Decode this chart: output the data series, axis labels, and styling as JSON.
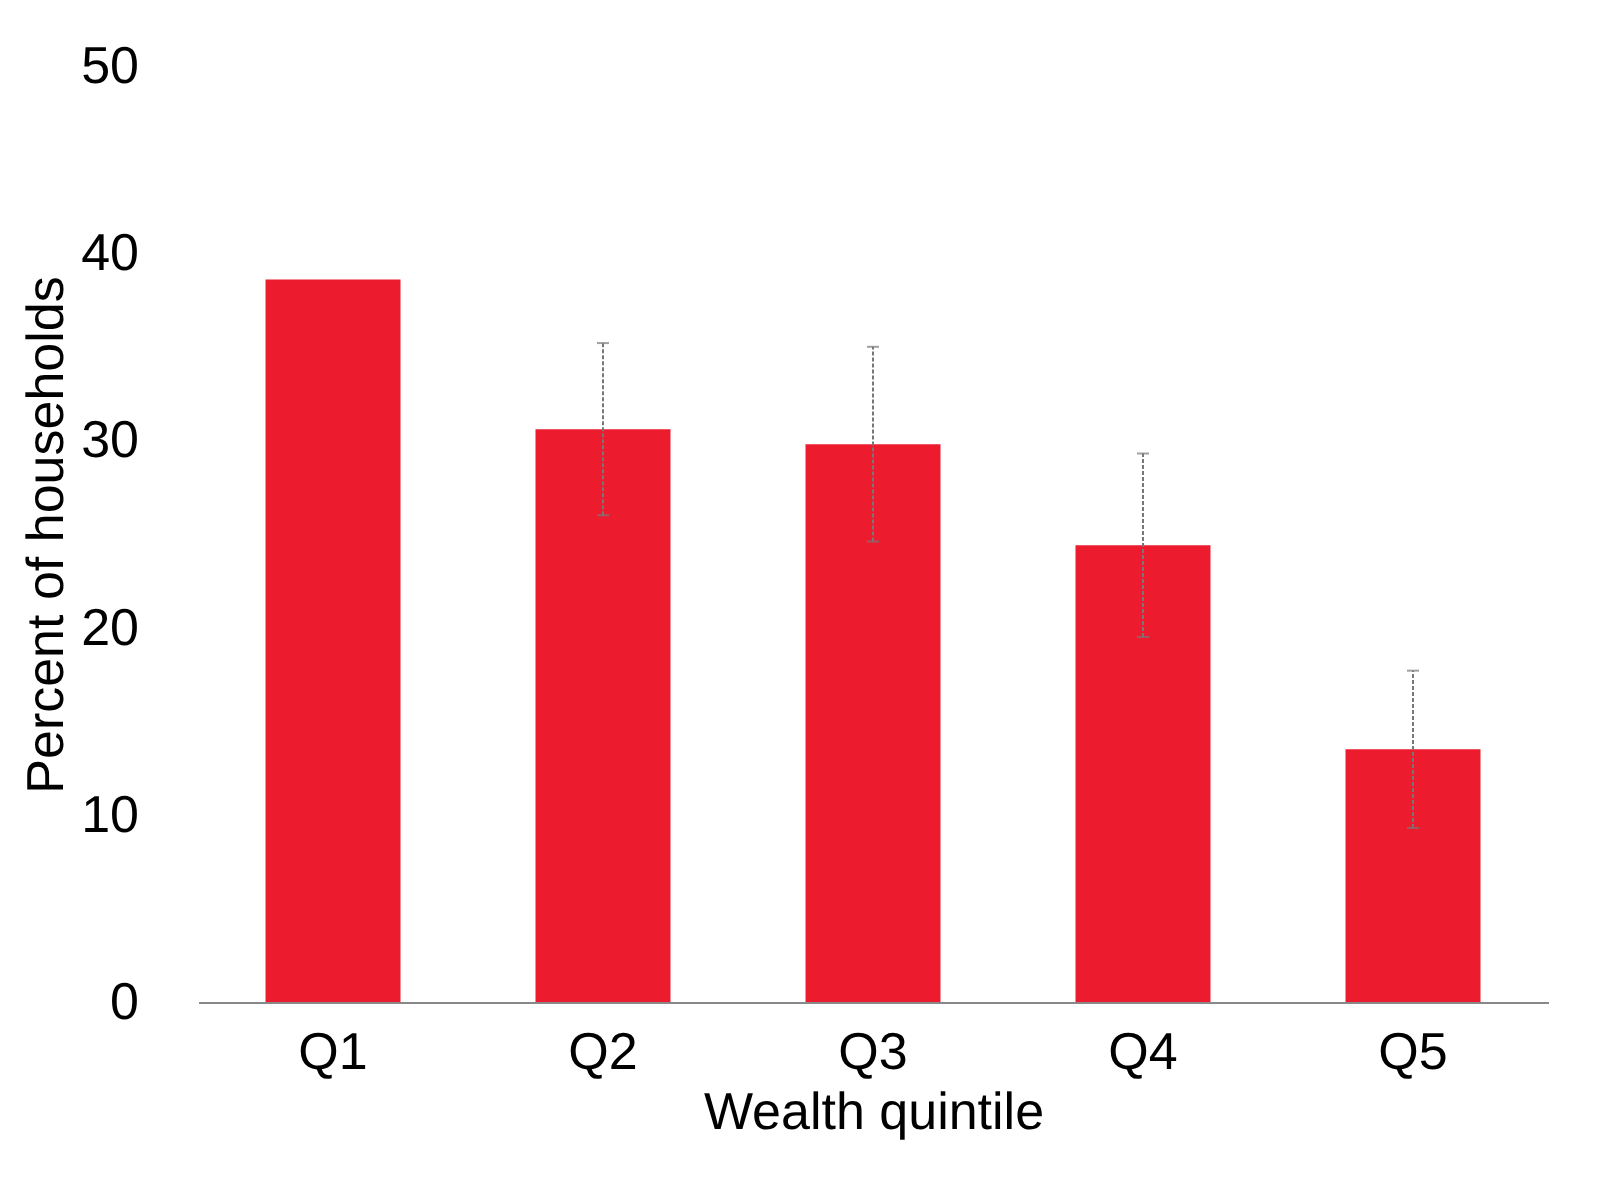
{
  "chart_data": {
    "type": "bar",
    "xlabel": "Wealth quintile",
    "ylabel": "Percent of households",
    "categories": [
      "Q1",
      "Q2",
      "Q3",
      "Q4",
      "Q5"
    ],
    "series": [
      {
        "color": "#ec1c2e",
        "values": [
          38.6,
          30.6,
          29.8,
          24.4,
          13.5
        ],
        "errors": [
          null,
          4.6,
          5.2,
          4.9,
          4.2
        ]
      }
    ],
    "ylim": [
      0,
      50
    ],
    "yticks": [
      0,
      10,
      20,
      30,
      40,
      50
    ],
    "grid": false
  }
}
